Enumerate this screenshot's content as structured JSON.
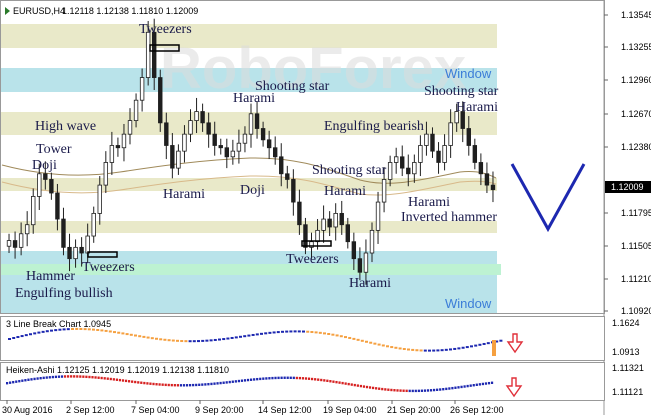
{
  "header": {
    "symbol": "EURUSD,H4",
    "ohlc": "1.12118 1.12138 1.11810 1.12009"
  },
  "watermark": "RoboForex",
  "colors": {
    "bull": "#1f1f1f",
    "bear": "#1f1f1f",
    "zone_beige": "#e9e9c9",
    "zone_blue": "#b9e3ea",
    "zone_green": "#bdf2d2",
    "arrow": "#1d28b0",
    "ma1": "#a08a5a",
    "ma2": "#d8b98a",
    "price_box": "#000000"
  },
  "price_axis": [
    "1.13545",
    "1.13255",
    "1.12960",
    "1.12670",
    "1.12380",
    "1.12009",
    "1.11795",
    "1.11505",
    "1.11210",
    "1.10920"
  ],
  "current_price": "1.12009",
  "patterns": [
    {
      "text": "Tweezers"
    },
    {
      "text": "Shooting star"
    },
    {
      "text": "Harami"
    },
    {
      "text": "High wave"
    },
    {
      "text": "Tower"
    },
    {
      "text": "Doji"
    },
    {
      "text": "Harami"
    },
    {
      "text": "Doji"
    },
    {
      "text": "Shooting star"
    },
    {
      "text": "Harami"
    },
    {
      "text": "Engulfing bearish"
    },
    {
      "text": "Shooting star"
    },
    {
      "text": "Harami"
    },
    {
      "text": "Harami"
    },
    {
      "text": "Inverted hammer"
    },
    {
      "text": "Tweezers"
    },
    {
      "text": "Harami"
    },
    {
      "text": "Hammer"
    },
    {
      "text": "Tweezers"
    },
    {
      "text": "Engulfing bullish"
    }
  ],
  "windows": [
    "Window",
    "Window"
  ],
  "panel2": {
    "label": "3 Line Break Chart 1.0945",
    "axis": [
      "1.1624",
      "1.0913"
    ]
  },
  "panel3": {
    "label": "Heiken-Ashi 1.12125 1.12019 1.12019 1.12138 1.11810",
    "axis": [
      "1.11321",
      "1.11121"
    ]
  },
  "time_axis": [
    "30 Aug 2016",
    "2 Sep 12:00",
    "7 Sep 04:00",
    "9 Sep 20:00",
    "14 Sep 12:00",
    "19 Sep 04:00",
    "21 Sep 20:00",
    "26 Sep 12:00"
  ],
  "chart_data": {
    "type": "candlestick",
    "title": "EURUSD,H4",
    "ylim": [
      1.1092,
      1.1365
    ],
    "closes": [
      1.1156,
      1.115,
      1.1162,
      1.117,
      1.1195,
      1.1215,
      1.121,
      1.1198,
      1.1175,
      1.115,
      1.114,
      1.115,
      1.1145,
      1.116,
      1.118,
      1.1205,
      1.1225,
      1.124,
      1.1238,
      1.125,
      1.1262,
      1.128,
      1.13,
      1.134,
      1.13,
      1.126,
      1.124,
      1.122,
      1.1235,
      1.125,
      1.1262,
      1.127,
      1.126,
      1.125,
      1.124,
      1.1238,
      1.123,
      1.1235,
      1.1242,
      1.125,
      1.1268,
      1.1255,
      1.1245,
      1.1238,
      1.123,
      1.1215,
      1.121,
      1.119,
      1.117,
      1.115,
      1.1155,
      1.1165,
      1.1175,
      1.1168,
      1.118,
      1.117,
      1.1155,
      1.114,
      1.1128,
      1.1145,
      1.1165,
      1.119,
      1.121,
      1.1225,
      1.123,
      1.122,
      1.1215,
      1.1225,
      1.124,
      1.125,
      1.1235,
      1.1225,
      1.124,
      1.126,
      1.127,
      1.1255,
      1.124,
      1.1225,
      1.1215,
      1.1205,
      1.1201
    ],
    "series": [
      {
        "name": "3 Line Break Chart",
        "values": []
      },
      {
        "name": "Heiken-Ashi",
        "values": []
      }
    ]
  }
}
